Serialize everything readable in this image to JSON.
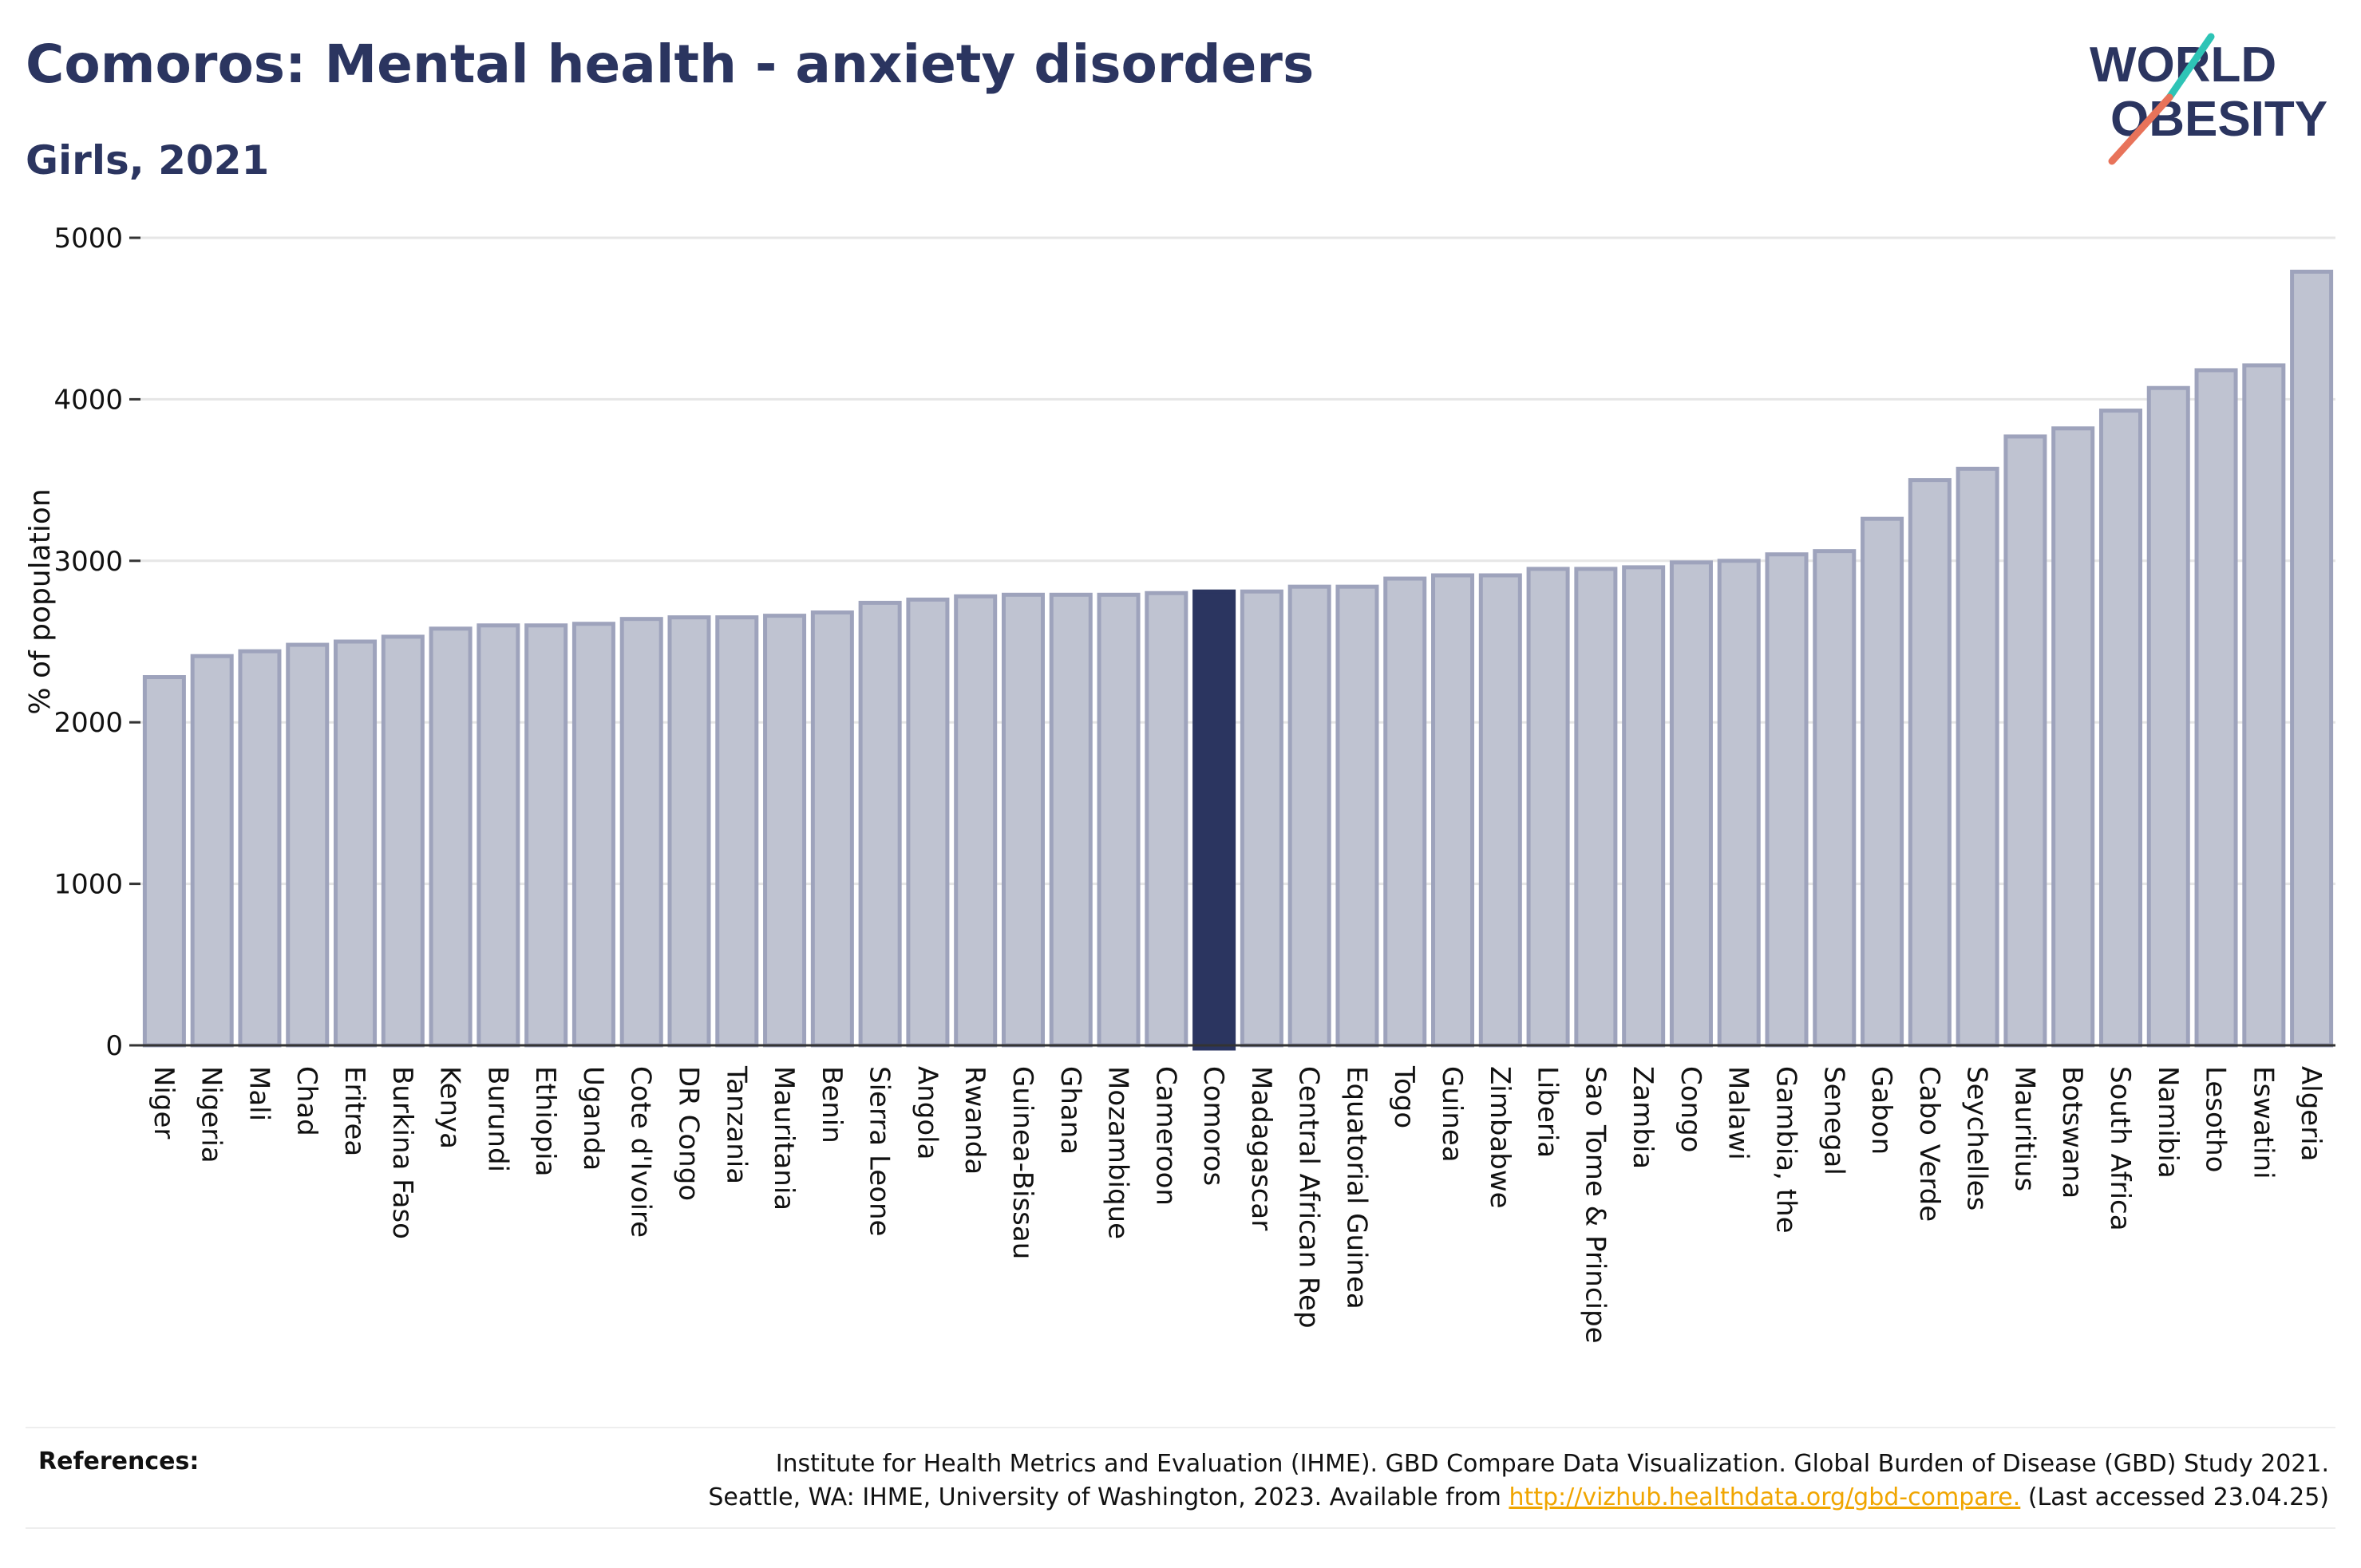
{
  "header": {
    "title": "Comoros: Mental health - anxiety disorders",
    "subtitle": "Girls, 2021"
  },
  "logo": {
    "line1": "WORLD",
    "line2": "OBESITY",
    "colors": {
      "text": "#2b3560",
      "slash_teal": "#2ec4b6",
      "slash_coral": "#e8735a"
    }
  },
  "chart_data": {
    "type": "bar",
    "ylabel": "% of population",
    "xlabel": "",
    "ylim": [
      0,
      5000
    ],
    "yticks": [
      0,
      1000,
      2000,
      3000,
      4000,
      5000
    ],
    "grid": true,
    "highlight": "Comoros",
    "colors": {
      "bar": "#bfc3d1",
      "bar_border": "#9ea3bc",
      "highlight": "#2b3560"
    },
    "categories": [
      "Niger",
      "Nigeria",
      "Mali",
      "Chad",
      "Eritrea",
      "Burkina Faso",
      "Kenya",
      "Burundi",
      "Ethiopia",
      "Uganda",
      "Cote d'Ivoire",
      "DR Congo",
      "Tanzania",
      "Mauritania",
      "Benin",
      "Sierra Leone",
      "Angola",
      "Rwanda",
      "Guinea-Bissau",
      "Ghana",
      "Mozambique",
      "Cameroon",
      "Comoros",
      "Madagascar",
      "Central African Rep",
      "Equatorial Guinea",
      "Togo",
      "Guinea",
      "Zimbabwe",
      "Liberia",
      "Sao Tome & Principe",
      "Zambia",
      "Congo",
      "Malawi",
      "Gambia, the",
      "Senegal",
      "Gabon",
      "Cabo Verde",
      "Seychelles",
      "Mauritius",
      "Botswana",
      "South Africa",
      "Namibia",
      "Lesotho",
      "Eswatini",
      "Algeria"
    ],
    "values": [
      2280,
      2410,
      2440,
      2480,
      2500,
      2530,
      2580,
      2600,
      2600,
      2610,
      2640,
      2650,
      2650,
      2660,
      2680,
      2740,
      2760,
      2780,
      2790,
      2790,
      2790,
      2800,
      2810,
      2810,
      2840,
      2840,
      2890,
      2910,
      2910,
      2950,
      2950,
      2960,
      2990,
      3000,
      3040,
      3060,
      3260,
      3500,
      3570,
      3770,
      3820,
      3930,
      4070,
      4180,
      4210,
      4790
    ]
  },
  "references": {
    "label": "References:",
    "line1": "Institute for Health Metrics and Evaluation (IHME). GBD Compare Data Visualization. Global Burden of Disease (GBD) Study 2021.",
    "line2_prefix": "Seattle, WA: IHME, University of Washington, 2023. Available from ",
    "link": "http://vizhub.healthdata.org/gbd-compare.",
    "line2_suffix": " (Last accessed 23.04.25)"
  }
}
